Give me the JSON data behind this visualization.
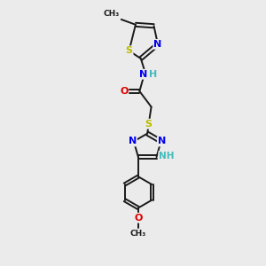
{
  "bg_color": "#ebebeb",
  "bond_color": "#1a1a1a",
  "bond_width": 1.4,
  "dbo": 0.07,
  "atom_colors": {
    "C": "#1a1a1a",
    "N": "#0000ee",
    "O": "#dd0000",
    "S": "#bbbb00",
    "NH": "#44bbbb",
    "H": "#44bbbb"
  },
  "fig_width": 3.0,
  "fig_height": 3.0,
  "dpi": 100,
  "xlim": [
    0,
    6
  ],
  "ylim": [
    0,
    10
  ]
}
